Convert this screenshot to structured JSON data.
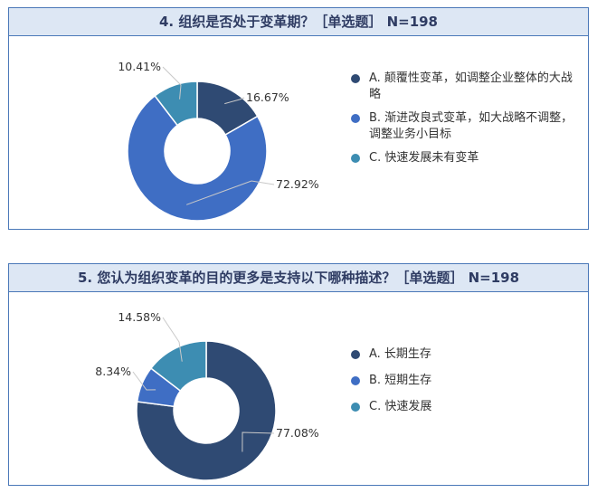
{
  "colors": {
    "dark_navy": "#2f4a73",
    "royal_blue": "#3f6ec4",
    "teal": "#3d8db2",
    "header_bg": "#dde7f4",
    "border": "#4a78b8"
  },
  "chart_data": [
    {
      "type": "pie",
      "title": "4. 组织是否处于变革期？［单选题］ N=198",
      "donut": true,
      "slices": [
        {
          "label": "A. 颠覆性变革，如调整企业整体的大战略",
          "value": 16.67,
          "display": "16.67%",
          "color": "#2f4a73"
        },
        {
          "label": "B. 渐进改良式变革，如大战略不调整，调整业务小目标",
          "value": 72.92,
          "display": "72.92%",
          "color": "#3f6ec4"
        },
        {
          "label": "C. 快速发展未有变革",
          "value": 10.41,
          "display": "10.41%",
          "color": "#3d8db2"
        }
      ],
      "legend": "right"
    },
    {
      "type": "pie",
      "title": "5. 您认为组织变革的目的更多是支持以下哪种描述？［单选题］ N=198",
      "donut": true,
      "slices": [
        {
          "label": "A. 长期生存",
          "value": 77.08,
          "display": "77.08%",
          "color": "#2f4a73"
        },
        {
          "label": "B. 短期生存",
          "value": 8.34,
          "display": "8.34%",
          "color": "#3f6ec4"
        },
        {
          "label": "C. 快速发展",
          "value": 14.58,
          "display": "14.58%",
          "color": "#3d8db2"
        }
      ],
      "legend": "right"
    }
  ]
}
